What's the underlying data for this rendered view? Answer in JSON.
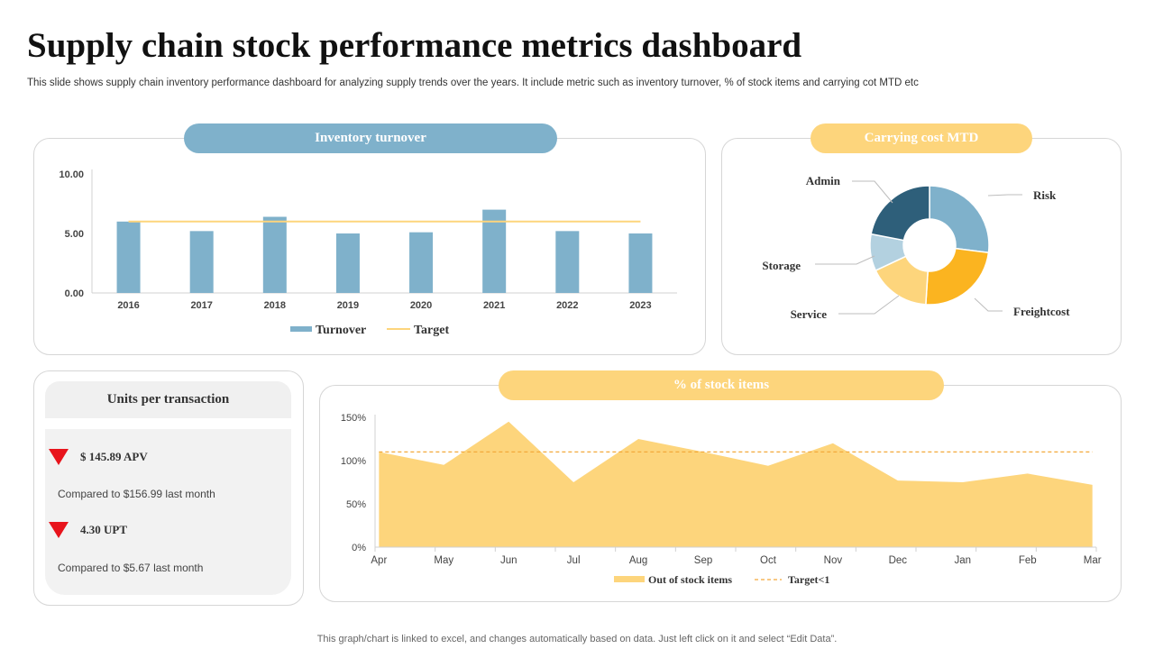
{
  "header": {
    "title": "Supply chain stock performance metrics dashboard",
    "subtitle": "This slide shows supply chain inventory performance dashboard for analyzing supply trends over the years. It include metric such as inventory turnover, % of stock items and carrying cot MTD etc"
  },
  "panels": {
    "inventory_title": "Inventory turnover",
    "carrying_title": "Carrying cost MTD",
    "stock_title": "% of stock items",
    "units_title": "Units per transaction"
  },
  "units": {
    "apv_value": "$ 145.89 APV",
    "apv_compare": "Compared to $156.99 last month",
    "upt_value": "4.30 UPT",
    "upt_compare": "Compared to $5.67 last month"
  },
  "footer": "This graph/chart is linked to excel, and changes automatically based on data. Just left click on it and select “Edit Data”.",
  "colors": {
    "blue": "#7fb1cb",
    "yellow": "#fdd57c",
    "dark_blue": "#2e5f7a",
    "orange": "#fbb420",
    "light_blue": "#b3d1e0",
    "down_red": "#e8141c"
  },
  "chart_data": [
    {
      "type": "bar",
      "title": "Inventory turnover",
      "categories": [
        "2016",
        "2017",
        "2018",
        "2019",
        "2020",
        "2021",
        "2022",
        "2023"
      ],
      "series": [
        {
          "name": "Turnover",
          "values": [
            6.0,
            5.2,
            6.4,
            5.0,
            5.1,
            7.0,
            5.2,
            5.0
          ]
        },
        {
          "name": "Target",
          "type": "line",
          "values": [
            6.0,
            6.0,
            6.0,
            6.0,
            6.0,
            6.0,
            6.0,
            6.0
          ]
        }
      ],
      "ylim": [
        0,
        10
      ],
      "yticks": [
        "0.00",
        "5.00",
        "10.00"
      ],
      "legend": "bottom"
    },
    {
      "type": "pie",
      "title": "Carrying cost MTD",
      "labels": [
        "Risk",
        "Freightcost",
        "Service",
        "Storage",
        "Admin"
      ],
      "values": [
        27,
        24,
        17,
        10,
        22
      ],
      "donut": true
    },
    {
      "type": "area",
      "title": "% of stock items",
      "categories": [
        "Apr",
        "May",
        "Jun",
        "Jul",
        "Aug",
        "Sep",
        "Oct",
        "Nov",
        "Dec",
        "Jan",
        "Feb",
        "Mar"
      ],
      "series": [
        {
          "name": "Out of stock items",
          "values": [
            110,
            95,
            145,
            75,
            125,
            110,
            94,
            120,
            77,
            75,
            85,
            72
          ]
        },
        {
          "name": "Target<1",
          "type": "line",
          "values": [
            110,
            110,
            110,
            110,
            110,
            110,
            110,
            110,
            110,
            110,
            110,
            110
          ]
        }
      ],
      "ylim": [
        0,
        150
      ],
      "yticks": [
        "0%",
        "50%",
        "100%",
        "150%"
      ],
      "legend": "bottom"
    }
  ]
}
